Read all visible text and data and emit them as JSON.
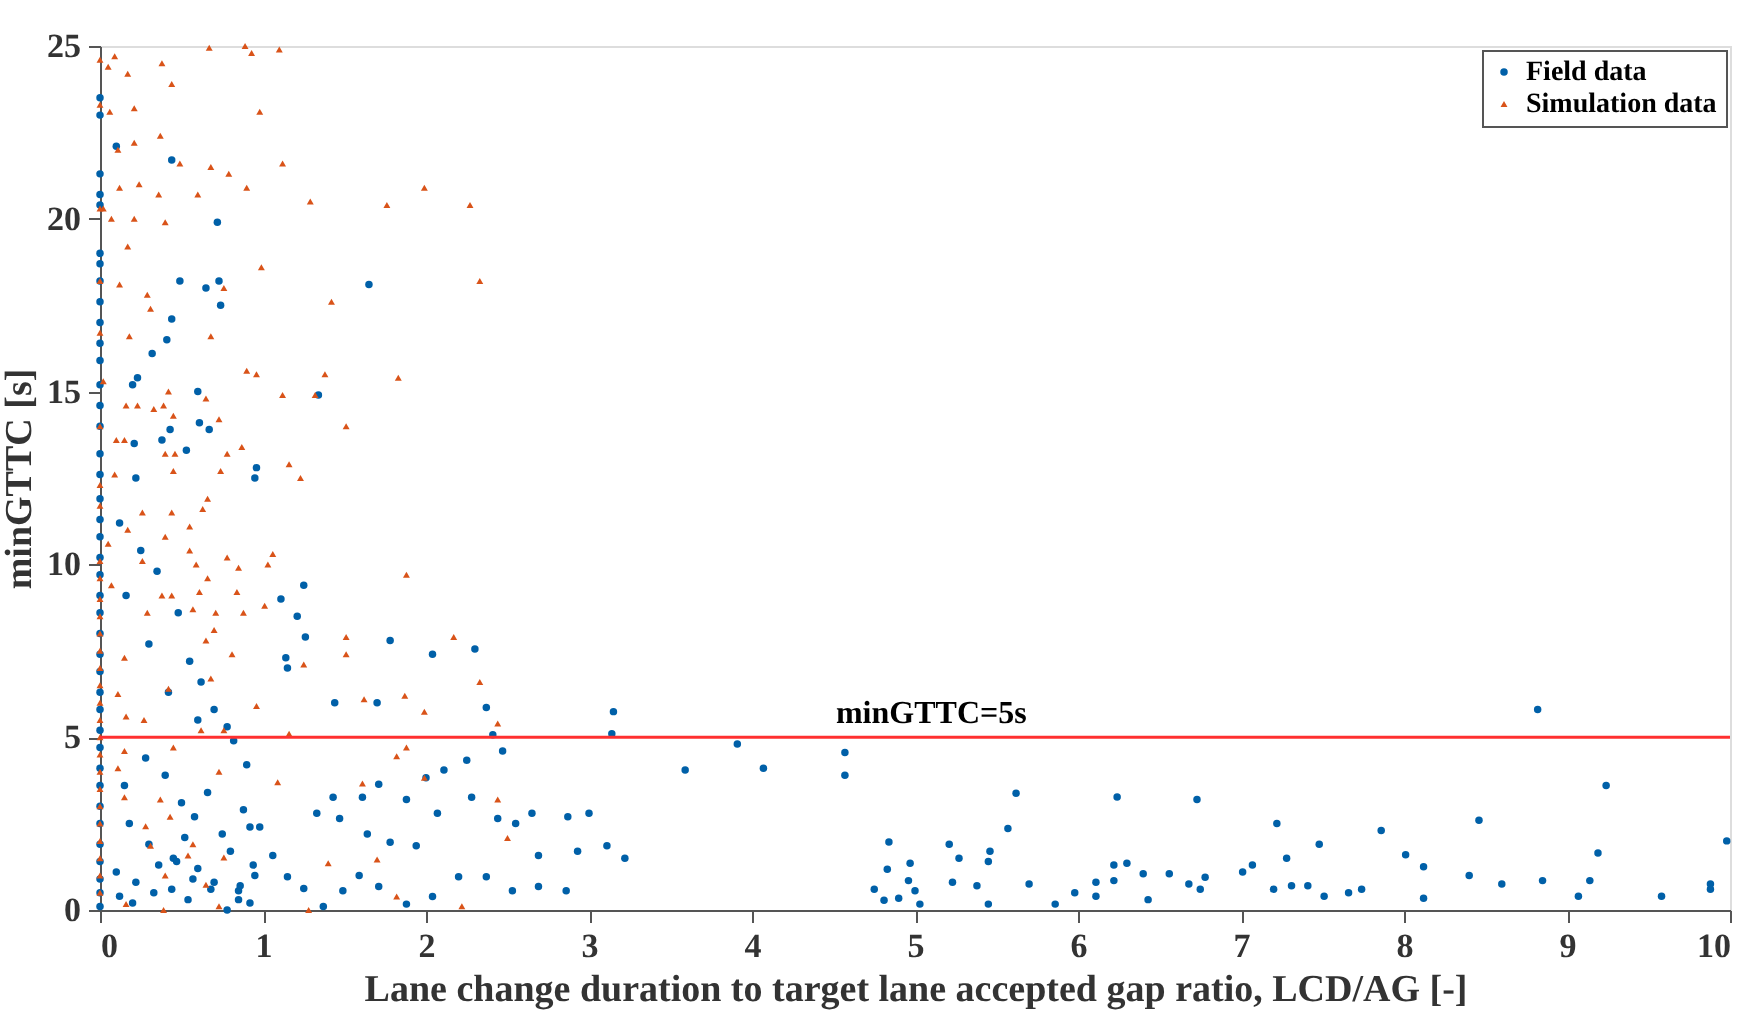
{
  "chart_data": {
    "type": "scatter",
    "xlabel": "Lane change duration to target lane accepted gap ratio, LCD/AG [-]",
    "ylabel": "minGTTC [s]",
    "xlim": [
      0,
      10
    ],
    "ylim": [
      0,
      25
    ],
    "xticks": [
      0,
      1,
      2,
      3,
      4,
      5,
      6,
      7,
      8,
      9,
      10
    ],
    "yticks": [
      0,
      5,
      10,
      15,
      20,
      25
    ],
    "grid": false,
    "legend": "top right",
    "ref_lines": [
      {
        "axis": "y",
        "value": 5,
        "label": "minGTTC=5s",
        "color": "#ff3030"
      }
    ],
    "series": [
      {
        "name": "Field data",
        "color": "#0060a8",
        "marker": "circle",
        "x": [
          3.15,
          3.14,
          8.82,
          3.91,
          4.07,
          4.57,
          4.57,
          3.59,
          5.62,
          6.24,
          6.73,
          9.24,
          8.46,
          7.22,
          7.86,
          7.48,
          9.98,
          9.19,
          7.28,
          8.01,
          8.12,
          8.4,
          8.6,
          8.85,
          9.14,
          9.07,
          9.58,
          9.88,
          9.88,
          8.12,
          7.74,
          7.66,
          7.51,
          7.41,
          7.31,
          7.2,
          7.07,
          7.01,
          6.78,
          6.75,
          6.68,
          6.56,
          6.43,
          6.4,
          6.3,
          6.22,
          6.22,
          6.11,
          6.11,
          5.98,
          5.86,
          5.7,
          5.46,
          5.45,
          5.57,
          5.45,
          5.38,
          5.27,
          5.21,
          5.23,
          5.03,
          4.97,
          4.96,
          5.0,
          4.84,
          4.83,
          4.9,
          4.75,
          4.81,
          1.25,
          1.26,
          1.21,
          1.11,
          1.14,
          1.15,
          1.44,
          1.7,
          1.78,
          2.04,
          2.3,
          2.37,
          2.41,
          2.47,
          2.25,
          2.11,
          2.0,
          1.71,
          1.61,
          1.43,
          1.33,
          1.47,
          1.64,
          1.78,
          1.88,
          1.94,
          2.07,
          2.28,
          2.44,
          2.55,
          2.65,
          2.69,
          2.87,
          2.93,
          3.0,
          3.11,
          3.22,
          2.86,
          2.69,
          2.53,
          2.37,
          2.2,
          2.04,
          1.88,
          1.71,
          1.59,
          1.49,
          1.37,
          1.25,
          1.15,
          1.06,
          0.98,
          0.94,
          0.85,
          0.78,
          0.44,
          0.72,
          0.49,
          0.73,
          0.65,
          1.65,
          0.74,
          0.44,
          0.41,
          0.32,
          0.2,
          0.23,
          0.6,
          1.34,
          0.61,
          0.43,
          0.67,
          0.1,
          0.38,
          0.21,
          0.53,
          0.96,
          0.95,
          0.22,
          0.12,
          0.25,
          0.35,
          0.48,
          0.55,
          0.62,
          0.7,
          0.82,
          0.9,
          0.15,
          0.28,
          0.4,
          0.5,
          0.58,
          0.66,
          0.75,
          0.88,
          0.18,
          0.3,
          0.45,
          0.52,
          0.6,
          0.8,
          0.92,
          0.1,
          0.22,
          0.33,
          0.47,
          0.57,
          0.68,
          0.85,
          0.95,
          0.86,
          0.12,
          0.2,
          0.36,
          0.44,
          0.54,
          0.7,
          0.92,
          0.16,
          0.3,
          0.42,
          0.6,
          0.78,
          0,
          0,
          0,
          0,
          0,
          0,
          0,
          0,
          0,
          0,
          0,
          0,
          0,
          0,
          0,
          0,
          0,
          0,
          0,
          0,
          0,
          0,
          0,
          0,
          0,
          0,
          0,
          0,
          0,
          0,
          0,
          0,
          0,
          0,
          0,
          0,
          0,
          0,
          0,
          0
        ],
        "values": [
          5.74,
          5.1,
          5.8,
          4.8,
          4.1,
          4.56,
          3.9,
          4.05,
          3.38,
          3.27,
          3.2,
          3.6,
          2.6,
          2.5,
          2.3,
          1.9,
          2.0,
          1.65,
          1.5,
          1.6,
          1.25,
          1.0,
          0.75,
          0.85,
          0.85,
          0.4,
          0.4,
          0.75,
          0.6,
          0.34,
          0.6,
          0.5,
          0.4,
          0.7,
          0.7,
          0.6,
          1.3,
          1.1,
          0.95,
          0.6,
          0.75,
          1.05,
          0.3,
          1.05,
          1.35,
          1.3,
          0.85,
          0.8,
          0.4,
          0.5,
          0.17,
          0.75,
          1.7,
          1.4,
          2.36,
          0.17,
          0.7,
          1.5,
          1.9,
          0.8,
          0.17,
          1.35,
          0.85,
          0.56,
          1.97,
          1.18,
          0.34,
          0.6,
          0.28,
          9.4,
          7.9,
          8.5,
          9.0,
          7.3,
          7.0,
          6.0,
          6.0,
          7.8,
          7.4,
          7.55,
          5.86,
          5.07,
          4.6,
          4.33,
          4.05,
          3.83,
          3.64,
          3.26,
          3.26,
          2.8,
          2.65,
          2.2,
          1.96,
          3.2,
          1.86,
          2.8,
          3.26,
          2.65,
          2.5,
          2.8,
          1.58,
          2.7,
          1.7,
          2.8,
          1.86,
          1.5,
          0.56,
          0.68,
          0.56,
          0.96,
          0.96,
          0.39,
          0.17,
          0.68,
          1.0,
          0.56,
          0.1,
          0.62,
          0.96,
          1.58,
          2.4,
          1.3,
          0.56,
          0.0,
          21.7,
          19.9,
          18.2,
          18.2,
          18.0,
          18.1,
          17.5,
          17.1,
          16.5,
          16.1,
          15.2,
          15.4,
          15.0,
          14.9,
          14.1,
          13.9,
          13.9,
          22.1,
          13.6,
          13.5,
          13.3,
          12.8,
          12.5,
          12.5,
          11.2,
          10.4,
          9.8,
          8.6,
          7.2,
          6.6,
          5.8,
          4.9,
          4.2,
          3.6,
          4.4,
          3.9,
          3.1,
          2.7,
          3.4,
          2.2,
          2.9,
          2.5,
          1.9,
          1.5,
          2.1,
          1.2,
          1.7,
          2.4,
          1.1,
          0.8,
          0.5,
          1.4,
          0.9,
          0.6,
          0.3,
          1.0,
          0.7,
          0.4,
          0.2,
          1.3,
          0.6,
          0.3,
          0.8,
          0.2,
          9.1,
          7.7,
          6.3,
          5.5,
          5.3,
          23.5,
          23.0,
          21.3,
          20.7,
          20.4,
          19.0,
          18.7,
          18.2,
          17.6,
          17.0,
          16.4,
          15.9,
          15.2,
          14.6,
          14.0,
          13.2,
          12.6,
          11.9,
          11.3,
          10.8,
          10.2,
          9.7,
          9.1,
          8.6,
          8.0,
          7.4,
          6.9,
          6.3,
          5.8,
          5.2,
          4.7,
          4.1,
          3.6,
          3.0,
          2.5,
          1.9,
          1.4,
          0.9,
          0.5,
          0.1
        ]
      },
      {
        "name": "Simulation data",
        "color": "#d95319",
        "marker": "triangle",
        "x": [
          0.67,
          0.89,
          0.93,
          1.1,
          0.09,
          0.05,
          0.38,
          0.17,
          0.44,
          0.06,
          0.21,
          0.98,
          0.21,
          0.37,
          0.11,
          0.49,
          0.68,
          0.79,
          1.12,
          0.12,
          0.24,
          0.36,
          0.6,
          0.9,
          1.99,
          1.29,
          1.76,
          2.27,
          0.02,
          0.07,
          0.21,
          0.4,
          0.17,
          0.99,
          2.33,
          0.12,
          0.29,
          0.76,
          1.42,
          0.31,
          0.18,
          0.68,
          0.9,
          0.96,
          1.38,
          1.83,
          0.02,
          0.42,
          0.65,
          1.12,
          1.32,
          0.16,
          0.23,
          0.33,
          0.39,
          0.45,
          0.73,
          1.51,
          0.1,
          0.15,
          0.87,
          0.78,
          0.4,
          0.46,
          1.16,
          1.23,
          0.45,
          0.74,
          0.09,
          0.66,
          0.63,
          0.26,
          0.44,
          0.55,
          0.17,
          0.4,
          0.05,
          0.55,
          0.78,
          1.06,
          1.03,
          0.26,
          0.59,
          0.85,
          0.07,
          1.88,
          0.66,
          0.61,
          0.84,
          0.38,
          0.44,
          0.29,
          0.57,
          0.71,
          0.88,
          1.01,
          0.7,
          0.65,
          1.51,
          2.17,
          0.81,
          1.51,
          0.15,
          1.25,
          0.68,
          0.42,
          0.11,
          1.62,
          1.87,
          0.96,
          1.99,
          2.33,
          2.44,
          0.16,
          0.27,
          0.62,
          0.76,
          1.16,
          1.88,
          1.82,
          0.45,
          0.15,
          0.11,
          0.73,
          1.09,
          1.61,
          1.99,
          0.15,
          2.44,
          0.37,
          0.43,
          0.28,
          0.31,
          2.5,
          0.57,
          0.54,
          0.76,
          0.4,
          1.7,
          1.4,
          1.82,
          2.22,
          1.28,
          0.73,
          0.65,
          0.39,
          0.16,
          0,
          0,
          0,
          0,
          0,
          0,
          0,
          0,
          0,
          0,
          0,
          0,
          0,
          0,
          0,
          0,
          0,
          0,
          0,
          0,
          0,
          0,
          0,
          0,
          0,
          0,
          0,
          0
        ],
        "values": [
          24.95,
          25.0,
          24.8,
          24.9,
          24.7,
          24.4,
          24.5,
          24.2,
          23.9,
          23.1,
          23.2,
          23.1,
          22.2,
          22.4,
          22.0,
          21.6,
          21.5,
          21.3,
          21.6,
          20.9,
          21.0,
          20.7,
          20.7,
          20.9,
          20.9,
          20.5,
          20.4,
          20.4,
          20.3,
          20.0,
          20.0,
          19.9,
          19.2,
          18.6,
          18.2,
          18.1,
          17.8,
          18.0,
          17.6,
          17.4,
          16.6,
          16.6,
          15.6,
          15.5,
          15.5,
          15.4,
          15.3,
          15.0,
          14.8,
          14.9,
          14.9,
          14.6,
          14.6,
          14.5,
          14.6,
          14.3,
          14.2,
          14.0,
          13.6,
          13.6,
          13.4,
          13.2,
          13.2,
          13.2,
          12.9,
          12.5,
          12.7,
          12.7,
          12.6,
          11.9,
          11.6,
          11.5,
          11.5,
          11.1,
          11.0,
          10.8,
          10.6,
          10.4,
          10.2,
          10.3,
          10.0,
          10.1,
          10.0,
          9.9,
          9.4,
          9.7,
          9.6,
          9.2,
          9.2,
          9.1,
          9.1,
          8.6,
          8.7,
          8.6,
          8.6,
          8.8,
          8.1,
          7.8,
          7.9,
          7.9,
          7.4,
          7.4,
          7.3,
          7.1,
          6.7,
          6.4,
          6.25,
          6.1,
          6.2,
          5.9,
          5.74,
          6.6,
          5.4,
          5.6,
          5.5,
          5.2,
          5.2,
          5.1,
          4.7,
          4.45,
          4.7,
          4.6,
          4.1,
          4.0,
          3.7,
          3.66,
          3.83,
          3.26,
          3.2,
          3.2,
          2.7,
          2.42,
          1.86,
          2.08,
          1.9,
          1.58,
          1.52,
          1.0,
          1.46,
          1.35,
          0.39,
          0.11,
          0.0,
          0.11,
          0.73,
          0.0,
          0.17,
          24.6,
          23.3,
          20.3,
          18.2,
          16.7,
          14.0,
          12.3,
          11.7,
          10.1,
          9.6,
          9.0,
          8.5,
          8.0,
          7.5,
          7.0,
          6.5,
          6.0,
          5.5,
          5.0,
          4.5,
          4.0,
          3.5,
          3.0,
          2.5,
          2.0,
          1.5,
          1.0,
          0.5
        ]
      }
    ]
  }
}
